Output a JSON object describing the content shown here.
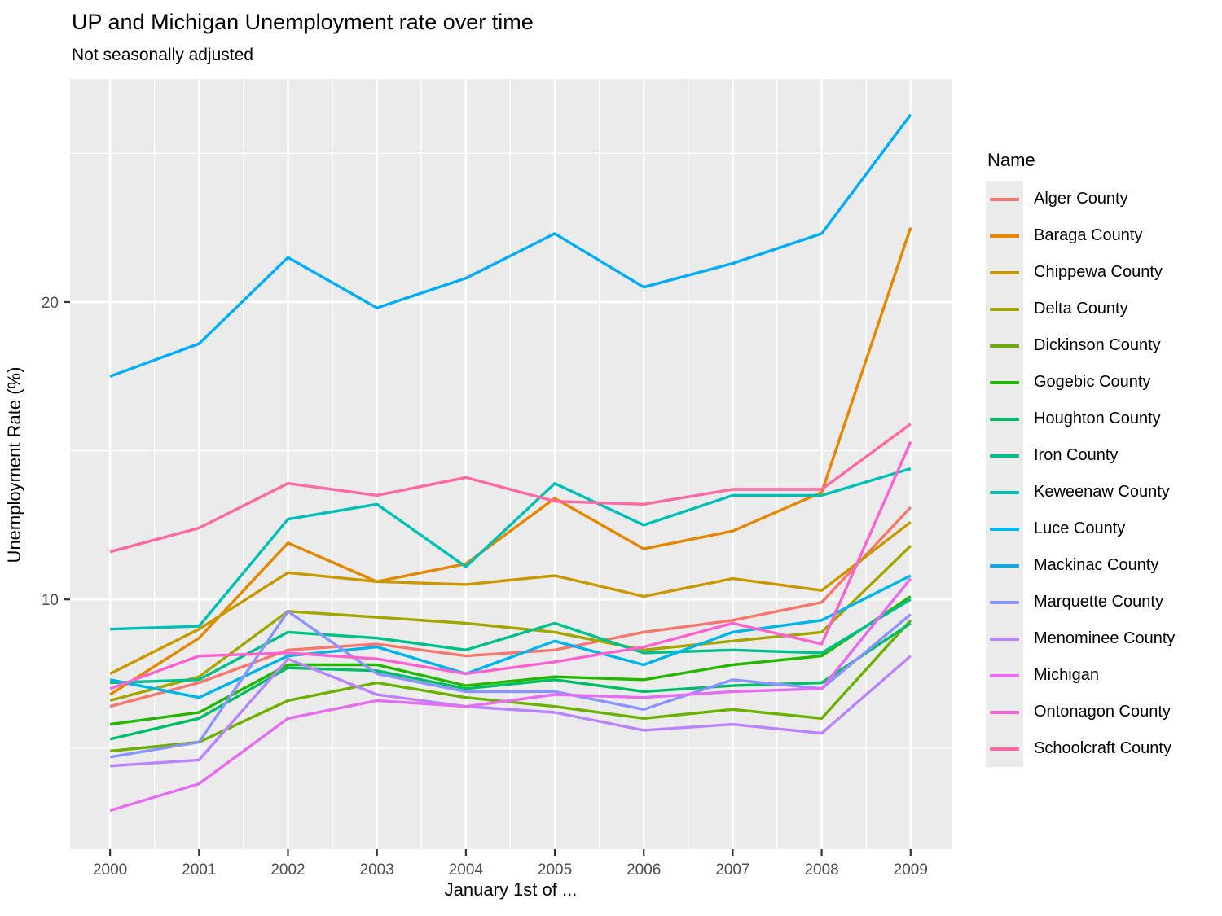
{
  "header": {
    "title": "UP and Michigan Unemployment rate over time",
    "subtitle": "Not seasonally adjusted"
  },
  "axes": {
    "x_title": "January 1st of ...",
    "y_title": "Unemployment Rate (%)"
  },
  "legend": {
    "title": "Name",
    "position": "right"
  },
  "panel": {
    "background_color": "#EBEBEB",
    "grid_color": "#FFFFFF",
    "tick_color": "#333333",
    "tick_label_color": "#4D4D4D"
  },
  "chart_data": {
    "type": "line",
    "title": "UP and Michigan Unemployment rate over time",
    "subtitle": "Not seasonally adjusted",
    "xlabel": "January 1st of ...",
    "ylabel": "Unemployment Rate (%)",
    "grid": "on",
    "legend_position": "right",
    "x": [
      2000,
      2001,
      2002,
      2003,
      2004,
      2005,
      2006,
      2007,
      2008,
      2009
    ],
    "xticks": [
      2000,
      2001,
      2002,
      2003,
      2004,
      2005,
      2006,
      2007,
      2008,
      2009
    ],
    "xticks_minor": [
      2000.5,
      2001.5,
      2002.5,
      2003.5,
      2004.5,
      2005.5,
      2006.5,
      2007.5,
      2008.5
    ],
    "yticks": [
      10,
      20
    ],
    "yticks_minor": [
      5,
      15,
      25
    ],
    "xlim": [
      1999.55,
      2009.46
    ],
    "ylim": [
      1.6,
      27.5
    ],
    "series": [
      {
        "name": "Alger County",
        "color": "#F8766D",
        "values": [
          6.4,
          7.2,
          8.3,
          8.5,
          8.1,
          8.3,
          8.9,
          9.3,
          9.9,
          13.1
        ]
      },
      {
        "name": "Baraga County",
        "color": "#E58700",
        "values": [
          6.8,
          8.7,
          11.9,
          10.6,
          11.2,
          13.4,
          11.7,
          12.3,
          13.6,
          22.5
        ]
      },
      {
        "name": "Chippewa County",
        "color": "#C99800",
        "values": [
          7.5,
          9.0,
          10.9,
          10.6,
          10.5,
          10.8,
          10.1,
          10.7,
          10.3,
          12.6
        ]
      },
      {
        "name": "Delta County",
        "color": "#A3A500",
        "values": [
          6.6,
          7.4,
          9.6,
          9.4,
          9.2,
          8.9,
          8.3,
          8.6,
          8.9,
          11.8
        ]
      },
      {
        "name": "Dickinson County",
        "color": "#6BB100",
        "values": [
          4.9,
          5.2,
          6.6,
          7.2,
          6.7,
          6.4,
          6.0,
          6.3,
          6.0,
          9.3
        ]
      },
      {
        "name": "Gogebic County",
        "color": "#24B700",
        "values": [
          5.8,
          6.2,
          7.8,
          7.8,
          7.1,
          7.4,
          7.3,
          7.8,
          8.1,
          10.1
        ]
      },
      {
        "name": "Houghton County",
        "color": "#00BE67",
        "values": [
          5.3,
          6.0,
          7.7,
          7.6,
          7.0,
          7.3,
          6.9,
          7.1,
          7.2,
          9.2
        ]
      },
      {
        "name": "Iron County",
        "color": "#00C08B",
        "values": [
          7.2,
          7.3,
          8.9,
          8.7,
          8.3,
          9.2,
          8.2,
          8.3,
          8.2,
          10.0
        ]
      },
      {
        "name": "Keweenaw County",
        "color": "#00C0B8",
        "values": [
          9.0,
          9.1,
          12.7,
          13.2,
          11.1,
          13.9,
          12.5,
          13.5,
          13.5,
          14.4
        ]
      },
      {
        "name": "Luce County",
        "color": "#00B5EB",
        "values": [
          7.3,
          6.7,
          8.1,
          8.4,
          7.5,
          8.6,
          7.8,
          8.9,
          9.3,
          10.8
        ]
      },
      {
        "name": "Mackinac County",
        "color": "#00ACFC",
        "values": [
          17.5,
          18.6,
          21.5,
          19.8,
          20.8,
          22.3,
          20.5,
          21.3,
          22.3,
          26.3
        ]
      },
      {
        "name": "Marquette County",
        "color": "#8B93FF",
        "values": [
          4.7,
          5.2,
          9.6,
          7.5,
          6.9,
          6.9,
          6.3,
          7.3,
          7.0,
          9.5
        ]
      },
      {
        "name": "Menominee County",
        "color": "#B983FF",
        "values": [
          4.4,
          4.6,
          8.0,
          6.8,
          6.4,
          6.2,
          5.6,
          5.8,
          5.5,
          8.1
        ]
      },
      {
        "name": "Michigan",
        "color": "#E76BF3",
        "values": [
          2.9,
          3.8,
          6.0,
          6.6,
          6.4,
          6.8,
          6.7,
          6.9,
          7.0,
          10.7
        ]
      },
      {
        "name": "Ontonagon County",
        "color": "#FD61D1",
        "values": [
          7.0,
          8.1,
          8.2,
          8.0,
          7.5,
          7.9,
          8.4,
          9.2,
          8.5,
          15.3
        ]
      },
      {
        "name": "Schoolcraft County",
        "color": "#FF67A4",
        "values": [
          11.6,
          12.4,
          13.9,
          13.5,
          14.1,
          13.3,
          13.2,
          13.7,
          13.7,
          15.9
        ]
      }
    ]
  }
}
